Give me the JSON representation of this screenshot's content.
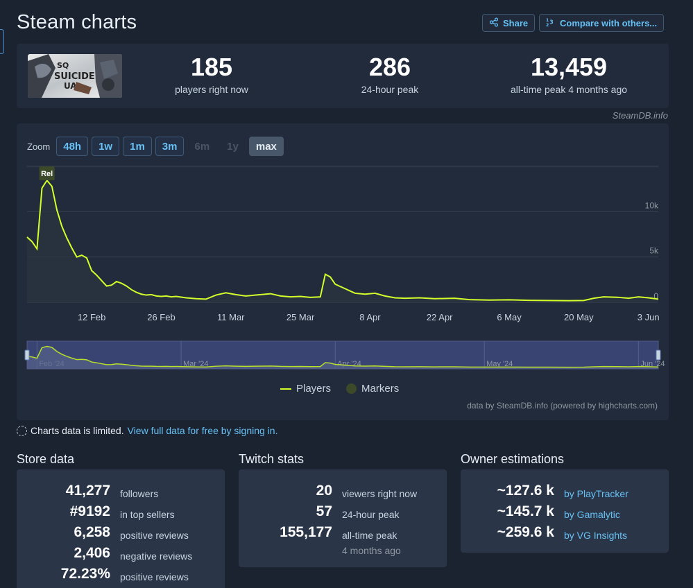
{
  "title": "Steam charts",
  "header_buttons": {
    "share": "Share",
    "compare": "Compare with others..."
  },
  "stats": {
    "current": {
      "value": "185",
      "label": "players right now"
    },
    "peak24": {
      "value": "286",
      "label": "24-hour peak"
    },
    "alltime": {
      "value": "13,459",
      "label": "all-time peak 4 months ago"
    }
  },
  "credit": "SteamDB.info",
  "zoom": {
    "label": "Zoom",
    "buttons": [
      "48h",
      "1w",
      "1m",
      "3m",
      "6m",
      "1y",
      "max"
    ],
    "disabled": [
      "6m",
      "1y"
    ],
    "active": "max"
  },
  "chart_data": {
    "type": "line",
    "series": [
      {
        "name": "Players",
        "color": "#d4ff2a",
        "points": [
          [
            "2024-01-30",
            7200
          ],
          [
            "2024-01-31",
            6700
          ],
          [
            "2024-02-01",
            5900
          ],
          [
            "2024-02-02",
            12600
          ],
          [
            "2024-02-03",
            13459
          ],
          [
            "2024-02-04",
            12800
          ],
          [
            "2024-02-05",
            10200
          ],
          [
            "2024-02-06",
            8400
          ],
          [
            "2024-02-07",
            7100
          ],
          [
            "2024-02-08",
            6000
          ],
          [
            "2024-02-09",
            5000
          ],
          [
            "2024-02-10",
            5200
          ],
          [
            "2024-02-11",
            4900
          ],
          [
            "2024-02-12",
            3500
          ],
          [
            "2024-02-13",
            3000
          ],
          [
            "2024-02-14",
            2400
          ],
          [
            "2024-02-15",
            1800
          ],
          [
            "2024-02-16",
            1900
          ],
          [
            "2024-02-17",
            2300
          ],
          [
            "2024-02-18",
            2100
          ],
          [
            "2024-02-19",
            1800
          ],
          [
            "2024-02-20",
            1400
          ],
          [
            "2024-02-21",
            1100
          ],
          [
            "2024-02-22",
            900
          ],
          [
            "2024-02-23",
            800
          ],
          [
            "2024-02-24",
            850
          ],
          [
            "2024-02-25",
            700
          ],
          [
            "2024-02-26",
            650
          ],
          [
            "2024-02-27",
            700
          ],
          [
            "2024-02-28",
            600
          ],
          [
            "2024-02-29",
            650
          ],
          [
            "2024-03-02",
            500
          ],
          [
            "2024-03-04",
            400
          ],
          [
            "2024-03-06",
            350
          ],
          [
            "2024-03-08",
            800
          ],
          [
            "2024-03-10",
            1050
          ],
          [
            "2024-03-12",
            850
          ],
          [
            "2024-03-14",
            700
          ],
          [
            "2024-03-16",
            800
          ],
          [
            "2024-03-19",
            950
          ],
          [
            "2024-03-21",
            700
          ],
          [
            "2024-03-23",
            600
          ],
          [
            "2024-03-25",
            650
          ],
          [
            "2024-03-27",
            550
          ],
          [
            "2024-03-29",
            600
          ],
          [
            "2024-03-30",
            3100
          ],
          [
            "2024-03-31",
            2800
          ],
          [
            "2024-04-01",
            2000
          ],
          [
            "2024-04-03",
            1500
          ],
          [
            "2024-04-05",
            1000
          ],
          [
            "2024-04-07",
            900
          ],
          [
            "2024-04-09",
            1000
          ],
          [
            "2024-04-11",
            700
          ],
          [
            "2024-04-13",
            500
          ],
          [
            "2024-04-15",
            450
          ],
          [
            "2024-04-18",
            500
          ],
          [
            "2024-04-21",
            400
          ],
          [
            "2024-04-25",
            450
          ],
          [
            "2024-04-28",
            300
          ],
          [
            "2024-05-02",
            250
          ],
          [
            "2024-05-06",
            280
          ],
          [
            "2024-05-10",
            220
          ],
          [
            "2024-05-14",
            200
          ],
          [
            "2024-05-18",
            180
          ],
          [
            "2024-05-21",
            200
          ],
          [
            "2024-05-23",
            450
          ],
          [
            "2024-05-25",
            600
          ],
          [
            "2024-05-28",
            550
          ],
          [
            "2024-05-30",
            450
          ],
          [
            "2024-06-01",
            600
          ],
          [
            "2024-06-03",
            500
          ],
          [
            "2024-06-05",
            350
          ]
        ]
      }
    ],
    "x_labels": [
      "12 Feb",
      "26 Feb",
      "11 Mar",
      "25 Mar",
      "8 Apr",
      "22 Apr",
      "6 May",
      "20 May",
      "3 Jun"
    ],
    "x_label_dates": [
      "2024-02-12",
      "2024-02-26",
      "2024-03-11",
      "2024-03-25",
      "2024-04-08",
      "2024-04-22",
      "2024-05-06",
      "2024-05-20",
      "2024-06-03"
    ],
    "y_labels": [
      "0",
      "5k",
      "10k"
    ],
    "y_values": [
      0,
      5000,
      10000
    ],
    "xlim": [
      "2024-01-30",
      "2024-06-05"
    ],
    "ylim": [
      0,
      15000
    ],
    "marker": {
      "label": "Rel",
      "date": "2024-02-03"
    },
    "navigator_labels": [
      "Feb '24",
      "Mar '24",
      "Apr '24",
      "May '24",
      "Jun '24"
    ],
    "navigator_label_dates": [
      "2024-02-01",
      "2024-03-01",
      "2024-04-01",
      "2024-05-01",
      "2024-06-01"
    ],
    "legend": [
      "Players",
      "Markers"
    ],
    "legend_position": "bottom-center"
  },
  "chart_credit": "data by SteamDB.info (powered by highcharts.com)",
  "limited": {
    "text": "Charts data is limited.",
    "link": "View full data for free by signing in."
  },
  "store_data": {
    "title": "Store data",
    "rows": [
      {
        "value": "41,277",
        "desc": "followers"
      },
      {
        "value": "#9192",
        "desc": "in top sellers"
      },
      {
        "value": "6,258",
        "desc": "positive reviews"
      },
      {
        "value": "2,406",
        "desc": "negative reviews"
      },
      {
        "value": "72.23%",
        "desc": "positive reviews"
      }
    ]
  },
  "twitch_stats": {
    "title": "Twitch stats",
    "rows": [
      {
        "value": "20",
        "desc": "viewers right now"
      },
      {
        "value": "57",
        "desc": "24-hour peak"
      },
      {
        "value": "155,177",
        "desc": "all-time peak"
      }
    ],
    "note": "4 months ago"
  },
  "owner_estimations": {
    "title": "Owner estimations",
    "rows": [
      {
        "value": "~127.6 k",
        "desc": "by PlayTracker"
      },
      {
        "value": "~145.7 k",
        "desc": "by Gamalytic"
      },
      {
        "value": "~259.6 k",
        "desc": "by VG Insights"
      }
    ]
  }
}
